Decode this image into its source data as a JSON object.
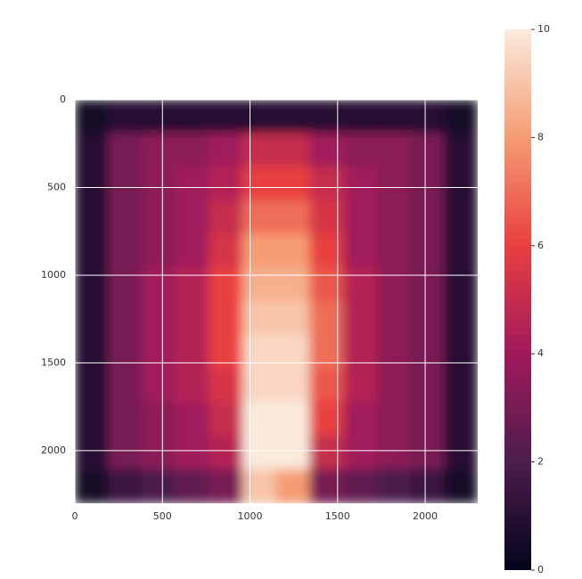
{
  "chart_data": {
    "type": "heatmap",
    "z": [
      [
        0.5,
        1,
        1,
        1,
        1,
        1,
        1,
        1,
        1,
        1,
        1,
        0.5
      ],
      [
        1,
        3,
        3.5,
        3.5,
        4,
        5,
        5,
        4,
        3.5,
        3.5,
        3,
        1
      ],
      [
        1,
        3,
        3.5,
        4,
        4.5,
        6,
        6,
        5,
        4,
        3.5,
        3,
        1
      ],
      [
        1,
        3,
        3.5,
        4,
        5,
        7,
        7,
        5.5,
        4,
        3.5,
        3,
        1
      ],
      [
        1,
        3,
        3.5,
        4,
        5.5,
        8,
        8,
        6,
        4,
        3.5,
        3,
        1
      ],
      [
        1,
        3,
        4,
        4.5,
        6,
        8.5,
        8.5,
        6.5,
        4.5,
        3.5,
        3,
        1
      ],
      [
        1,
        3,
        4,
        4.5,
        6,
        9,
        9,
        7,
        4.5,
        3.5,
        3,
        1
      ],
      [
        1,
        3,
        4,
        4.5,
        6,
        9.5,
        9.5,
        7,
        4.5,
        3.5,
        3,
        1
      ],
      [
        1,
        3,
        4,
        4.5,
        5.5,
        9.5,
        9.5,
        6.5,
        4.5,
        3.5,
        3,
        1
      ],
      [
        1,
        3,
        3.5,
        4,
        5,
        10,
        10,
        6,
        4,
        3.5,
        3,
        1
      ],
      [
        1,
        3,
        3.5,
        4,
        4.5,
        10,
        10,
        5,
        4,
        3.5,
        3,
        1
      ],
      [
        0.5,
        1.5,
        2,
        2.5,
        3,
        9,
        8,
        3,
        2.5,
        2,
        1.5,
        0.5
      ]
    ],
    "xlim": [
      0,
      2300
    ],
    "ylim": [
      2300,
      0
    ],
    "xticks": [
      0,
      500,
      1000,
      1500,
      2000
    ],
    "yticks": [
      0,
      500,
      1000,
      1500,
      2000
    ],
    "clim": [
      0,
      10
    ],
    "cticks": [
      0,
      2,
      4,
      6,
      8,
      10
    ],
    "colormap": [
      "#03051a",
      "#4c1d4b",
      "#a11a5b",
      "#e83f3f",
      "#f69c73",
      "#faebdd"
    ],
    "grid": true
  }
}
